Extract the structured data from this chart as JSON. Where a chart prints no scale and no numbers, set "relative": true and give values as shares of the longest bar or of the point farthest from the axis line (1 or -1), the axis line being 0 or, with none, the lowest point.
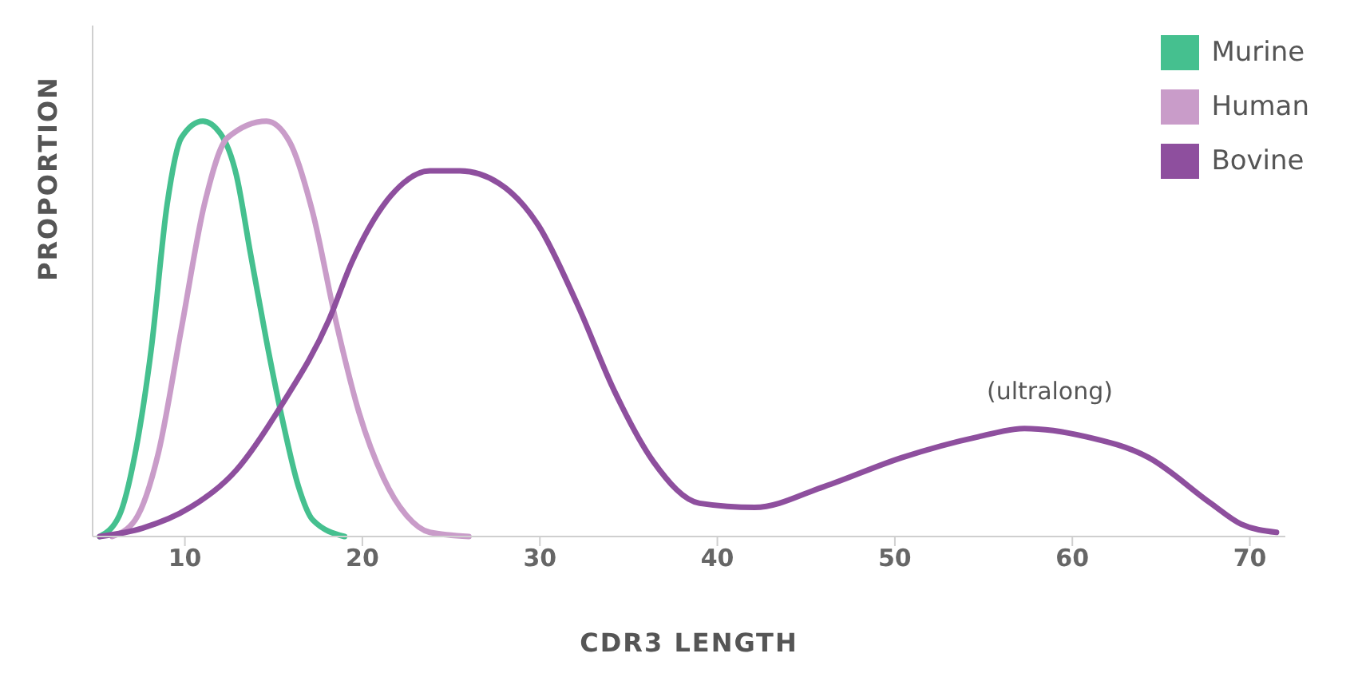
{
  "chart_data": {
    "type": "line",
    "relative": true,
    "xlabel": "CDR3 LENGTH",
    "ylabel": "PROPORTION",
    "xlim": [
      4.8,
      72
    ],
    "xticks": [
      10,
      20,
      30,
      40,
      50,
      60,
      70
    ],
    "grid": false,
    "legend": "top right",
    "marker": "none",
    "line_style": "solid",
    "annotations": [
      "(ultralong)"
    ],
    "series": [
      {
        "name": "Murine",
        "color": "#45c08f",
        "x": [
          5.2,
          6.3,
          7.2,
          8.1,
          9.0,
          9.8,
          11.0,
          12.0,
          12.9,
          13.7,
          14.6,
          15.5,
          16.4,
          17.2,
          19.0
        ],
        "values": [
          0,
          0.05,
          0.2,
          0.45,
          0.8,
          0.96,
          1.0,
          0.97,
          0.87,
          0.68,
          0.47,
          0.28,
          0.12,
          0.04,
          0
        ]
      },
      {
        "name": "Human",
        "color": "#c99cc9",
        "x": [
          5.9,
          7.2,
          8.5,
          9.8,
          11.1,
          12.4,
          14.6,
          15.9,
          17.2,
          18.5,
          19.8,
          21.2,
          22.5,
          23.8,
          26.0
        ],
        "values": [
          0,
          0.04,
          0.2,
          0.5,
          0.8,
          0.96,
          1.0,
          0.95,
          0.78,
          0.52,
          0.3,
          0.14,
          0.05,
          0.01,
          0
        ]
      },
      {
        "name": "Bovine",
        "color": "#8e4f9e",
        "x": [
          5.2,
          7.6,
          10.3,
          12.9,
          15.5,
          18.1,
          19.4,
          21.6,
          23.8,
          25.5,
          27.7,
          29.9,
          32.1,
          34.2,
          36.4,
          39.0,
          42.1,
          46.0,
          50.4,
          54.7,
          57.3,
          60.8,
          64.3,
          67.8,
          69.5,
          71.5
        ],
        "values": [
          0,
          0.02,
          0.07,
          0.16,
          0.32,
          0.52,
          0.66,
          0.82,
          0.88,
          0.88,
          0.85,
          0.75,
          0.56,
          0.35,
          0.18,
          0.08,
          0.07,
          0.12,
          0.19,
          0.24,
          0.26,
          0.24,
          0.19,
          0.08,
          0.03,
          0.01
        ]
      }
    ]
  }
}
